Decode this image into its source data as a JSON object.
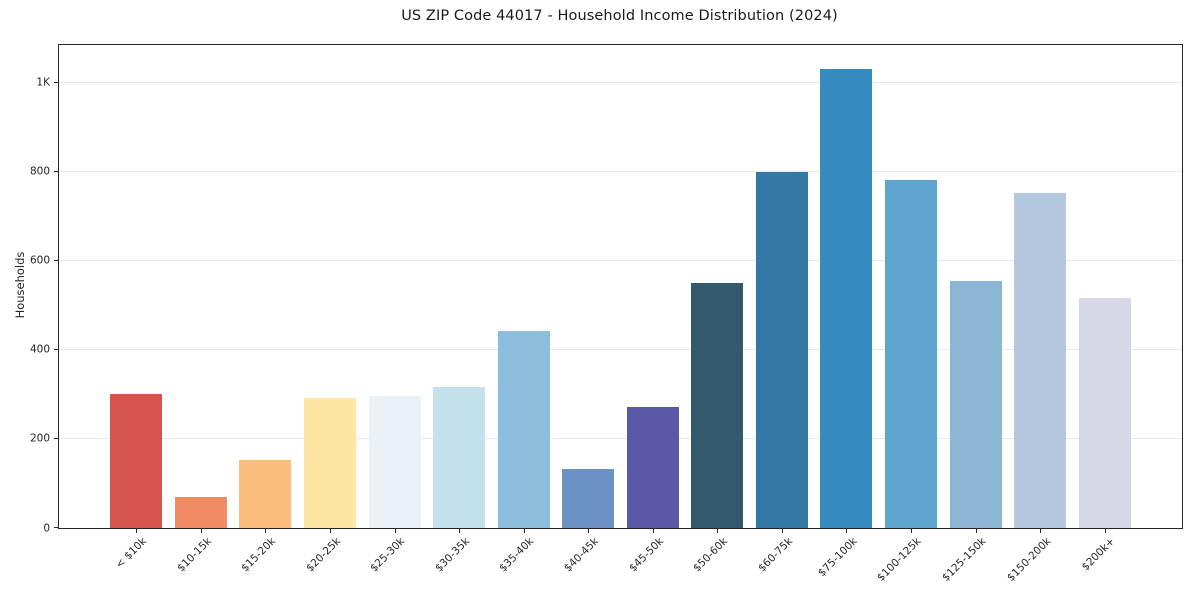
{
  "chart_data": {
    "type": "bar",
    "title": "US ZIP Code 44017 - Household Income Distribution (2024)",
    "xlabel": "",
    "ylabel": "Households",
    "categories": [
      "< $10k",
      "$10-15k",
      "$15-20k",
      "$20-25k",
      "$25-30k",
      "$30-35k",
      "$35-40k",
      "$40-45k",
      "$45-50k",
      "$50-60k",
      "$60-75k",
      "$75-100k",
      "$100-125k",
      "$125-150k",
      "$150-200k",
      "$200k+"
    ],
    "values": [
      300,
      70,
      153,
      292,
      297,
      317,
      443,
      133,
      272,
      551,
      800,
      1031,
      782,
      556,
      753,
      516
    ],
    "bar_colors": [
      "#d4554e",
      "#f38a66",
      "#fbbd7b",
      "#fde5a4",
      "#e9f3f7",
      "#c4e1ee",
      "#8dbedd",
      "#6b92c5",
      "#5a59a7",
      "#33596d",
      "#327aa5",
      "#368cc0",
      "#5ea4ce",
      "#8cb6d6",
      "#b4c8e0",
      "#d6d8e5"
    ],
    "ylim": [
      0,
      1085
    ],
    "yticks": [
      {
        "value": 0,
        "label": "0"
      },
      {
        "value": 200,
        "label": "200"
      },
      {
        "value": 400,
        "label": "400"
      },
      {
        "value": 600,
        "label": "600"
      },
      {
        "value": 800,
        "label": "800"
      },
      {
        "value": 1000,
        "label": "1K"
      }
    ],
    "grid": true,
    "legend_position": "none",
    "colors": {
      "axis": "#262626",
      "gridline": "#e9eaee",
      "title_text": "#1a1a1a",
      "tick_text": "#262626",
      "background": "#ffffff"
    }
  }
}
